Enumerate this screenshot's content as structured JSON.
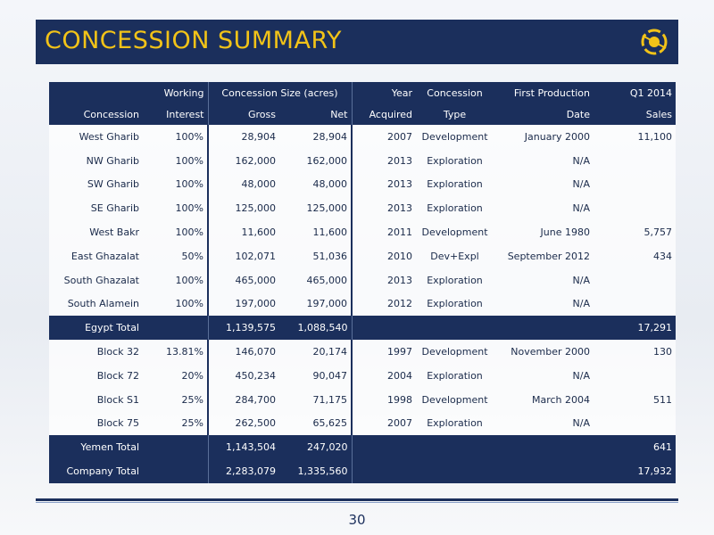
{
  "header": {
    "title": "CONCESSION SUMMARY"
  },
  "table": {
    "header_rows": [
      [
        null,
        "Working",
        "Concession Size (acres)",
        "Year",
        "Concession",
        "First Production",
        "Q1 2014"
      ],
      [
        "Concession",
        "Interest",
        "Gross",
        "Net",
        "Acquired",
        "Type",
        "Date",
        "Sales"
      ]
    ],
    "rows": [
      [
        "West Gharib",
        "100%",
        "28,904",
        "28,904",
        "2007",
        "Development",
        "January 2000",
        "11,100"
      ],
      [
        "NW Gharib",
        "100%",
        "162,000",
        "162,000",
        "2013",
        "Exploration",
        "N/A",
        null
      ],
      [
        "SW Gharib",
        "100%",
        "48,000",
        "48,000",
        "2013",
        "Exploration",
        "N/A",
        null
      ],
      [
        "SE Gharib",
        "100%",
        "125,000",
        "125,000",
        "2013",
        "Exploration",
        "N/A",
        null
      ],
      [
        "West Bakr",
        "100%",
        "11,600",
        "11,600",
        "2011",
        "Development",
        "June 1980",
        "5,757"
      ],
      [
        "East Ghazalat",
        "50%",
        "102,071",
        "51,036",
        "2010",
        "Dev+Expl",
        "September 2012",
        "434"
      ],
      [
        "South Ghazalat",
        "100%",
        "465,000",
        "465,000",
        "2013",
        "Exploration",
        "N/A",
        null
      ],
      [
        "South Alamein",
        "100%",
        "197,000",
        "197,000",
        "2012",
        "Exploration",
        "N/A",
        null
      ],
      [
        "Egypt Total",
        null,
        "1,139,575",
        "1,088,540",
        null,
        null,
        null,
        "17,291"
      ],
      [
        "Block 32",
        "13.81%",
        "146,070",
        "20,174",
        "1997",
        "Development",
        "November 2000",
        "130"
      ],
      [
        "Block 72",
        "20%",
        "450,234",
        "90,047",
        "2004",
        "Exploration",
        "N/A",
        null
      ],
      [
        "Block S1",
        "25%",
        "284,700",
        "71,175",
        "1998",
        "Development",
        "March 2004",
        "511"
      ],
      [
        "Block 75",
        "25%",
        "262,500",
        "65,625",
        "2007",
        "Exploration",
        "N/A",
        null
      ],
      [
        "Yemen Total",
        null,
        "1,143,504",
        "247,020",
        null,
        null,
        null,
        "641"
      ],
      [
        "Company Total",
        null,
        "2,283,079",
        "1,335,560",
        null,
        null,
        null,
        "17,932"
      ]
    ]
  },
  "footer": {
    "page_number": "30"
  }
}
